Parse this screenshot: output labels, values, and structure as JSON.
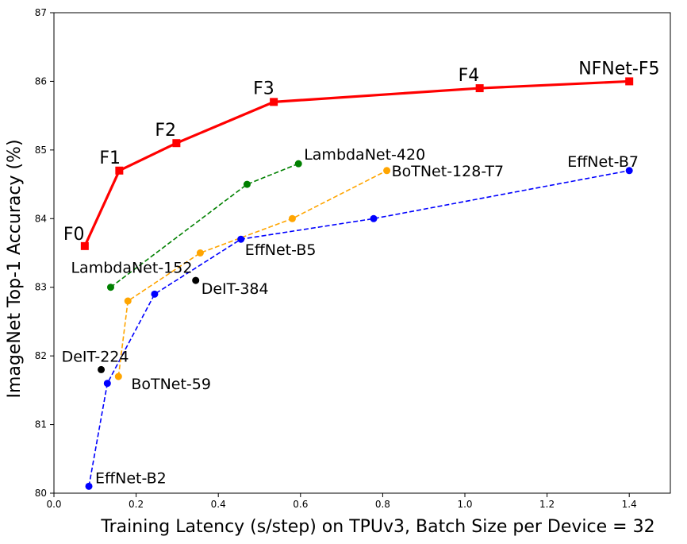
{
  "chart_data": {
    "type": "line",
    "title": "",
    "xlabel": "Training Latency (s/step) on TPUv3, Batch Size per Device = 32",
    "ylabel": "ImageNet Top-1 Accuracy (%)",
    "xlim": [
      0.0,
      1.5
    ],
    "ylim": [
      80,
      87
    ],
    "x_ticks": [
      0.0,
      0.2,
      0.4,
      0.6,
      0.8,
      1.0,
      1.2,
      1.4
    ],
    "x_tick_labels": [
      "0.0",
      "0.2",
      "0.4",
      "0.6",
      "0.8",
      "1.0",
      "1.2",
      "1.4"
    ],
    "y_ticks": [
      80,
      81,
      82,
      83,
      84,
      85,
      86,
      87
    ],
    "y_tick_labels": [
      "80",
      "81",
      "82",
      "83",
      "84",
      "85",
      "86",
      "87"
    ],
    "grid": false,
    "series": [
      {
        "color": "#ff0000",
        "line_style": "solid",
        "marker": "square",
        "points": [
          {
            "x": 0.075,
            "y": 83.6,
            "label": "F0"
          },
          {
            "x": 0.159,
            "y": 84.7,
            "label": "F1"
          },
          {
            "x": 0.298,
            "y": 85.1,
            "label": "F2"
          },
          {
            "x": 0.535,
            "y": 85.7,
            "label": "F3"
          },
          {
            "x": 1.036,
            "y": 85.9,
            "label": "F4"
          },
          {
            "x": 1.4,
            "y": 86.0,
            "label": "NFNet-F5"
          }
        ]
      },
      {
        "color": "#0000ff",
        "line_style": "dashed",
        "marker": "circle",
        "points": [
          {
            "x": 0.085,
            "y": 80.1,
            "label": "EffNet-B2"
          },
          {
            "x": 0.13,
            "y": 81.6,
            "label": ""
          },
          {
            "x": 0.245,
            "y": 82.9,
            "label": ""
          },
          {
            "x": 0.455,
            "y": 83.7,
            "label": "EffNet-B5"
          },
          {
            "x": 0.778,
            "y": 84.0,
            "label": ""
          },
          {
            "x": 1.4,
            "y": 84.7,
            "label": "EffNet-B7"
          }
        ]
      },
      {
        "color": "#ffa500",
        "line_style": "dashed",
        "marker": "circle",
        "points": [
          {
            "x": 0.157,
            "y": 81.7,
            "label": "BoTNet-59"
          },
          {
            "x": 0.18,
            "y": 82.8,
            "label": ""
          },
          {
            "x": 0.356,
            "y": 83.5,
            "label": ""
          },
          {
            "x": 0.58,
            "y": 84.0,
            "label": ""
          },
          {
            "x": 0.81,
            "y": 84.7,
            "label": "BoTNet-128-T7"
          }
        ]
      },
      {
        "color": "#008000",
        "line_style": "dashed",
        "marker": "circle",
        "points": [
          {
            "x": 0.138,
            "y": 83.0,
            "label": "LambdaNet-152"
          },
          {
            "x": 0.47,
            "y": 84.5,
            "label": ""
          },
          {
            "x": 0.595,
            "y": 84.8,
            "label": "LambdaNet-420"
          }
        ]
      },
      {
        "color": "#000000",
        "line_style": "none",
        "marker": "circle",
        "points": [
          {
            "x": 0.115,
            "y": 81.8,
            "label": "DeIT-224"
          },
          {
            "x": 0.345,
            "y": 83.1,
            "label": "DeIT-384"
          }
        ]
      }
    ]
  }
}
